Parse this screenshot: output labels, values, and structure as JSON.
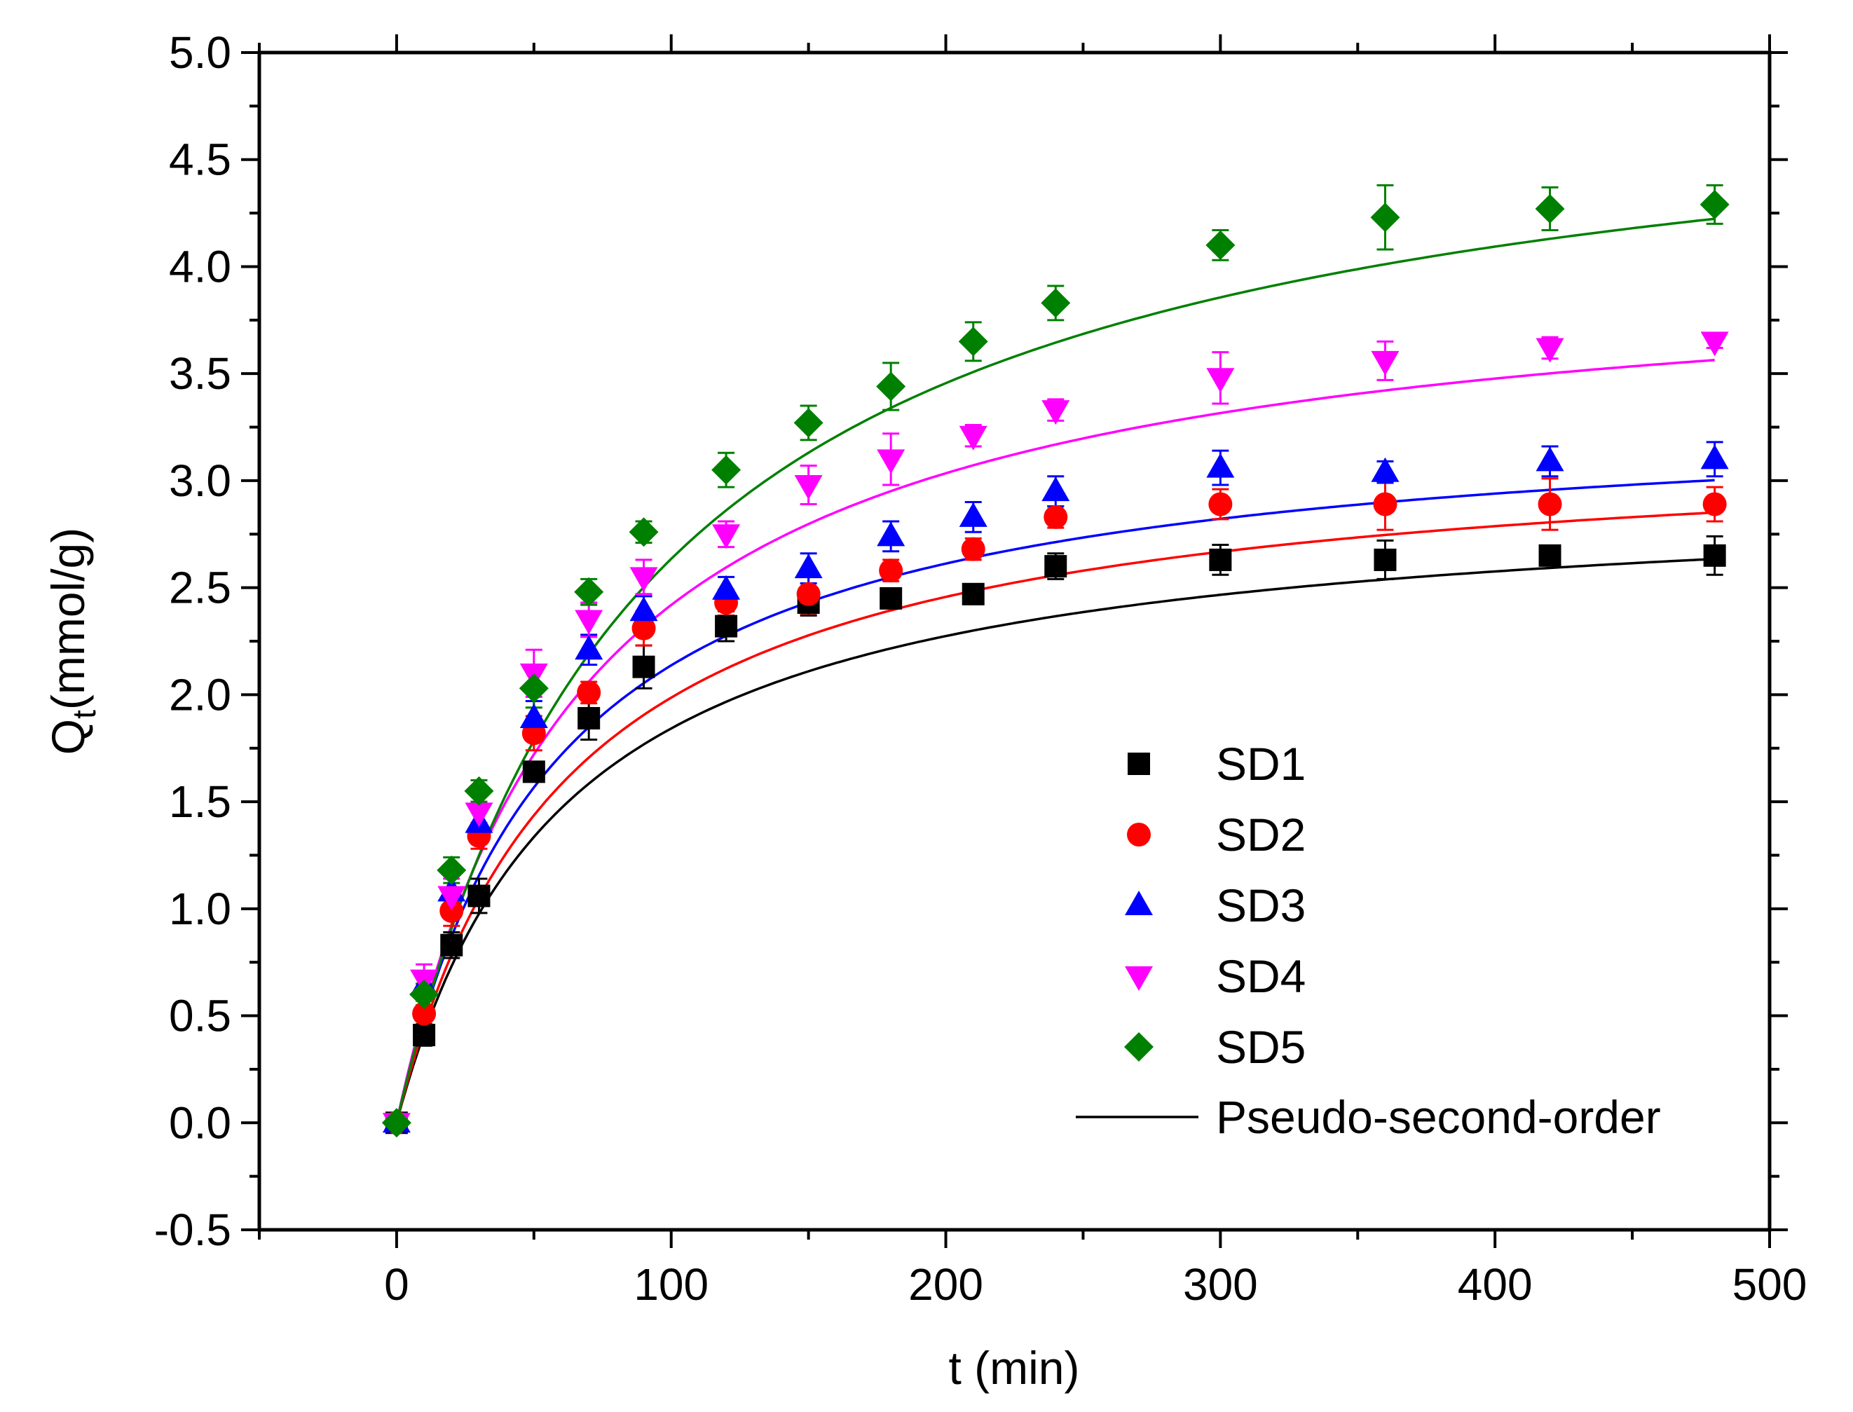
{
  "chart_data": {
    "type": "scatter",
    "title": "",
    "xlabel": "t (min)",
    "ylabel_main": "Q",
    "ylabel_sub": "t",
    "ylabel_unit": "(mmol/g)",
    "xlim": [
      -50,
      500
    ],
    "ylim": [
      -0.5,
      5.0
    ],
    "xticks": [
      0,
      100,
      200,
      300,
      400,
      500
    ],
    "yticks": [
      -0.5,
      0.0,
      0.5,
      1.0,
      1.5,
      2.0,
      2.5,
      3.0,
      3.5,
      4.0,
      4.5,
      5.0
    ],
    "ytick_labels": [
      "-0.5",
      "0.0",
      "0.5",
      "1.0",
      "1.5",
      "2.0",
      "2.5",
      "3.0",
      "3.5",
      "4.0",
      "4.5",
      "5.0"
    ],
    "legend_position": "bottom-right",
    "x": [
      0,
      10,
      20,
      30,
      50,
      70,
      90,
      120,
      150,
      180,
      210,
      240,
      300,
      360,
      420,
      480
    ],
    "series": [
      {
        "name": "SD1",
        "marker": "square",
        "color": "#000000",
        "values": [
          0.0,
          0.41,
          0.83,
          1.06,
          1.64,
          1.89,
          2.13,
          2.32,
          2.43,
          2.45,
          2.47,
          2.6,
          2.63,
          2.63,
          2.65,
          2.65
        ],
        "errors": [
          0.02,
          0.05,
          0.06,
          0.08,
          0.04,
          0.1,
          0.1,
          0.07,
          0.06,
          0.04,
          0.04,
          0.06,
          0.07,
          0.09,
          0.03,
          0.09
        ],
        "fit": {
          "qe": 2.97,
          "k2": 0.0055
        }
      },
      {
        "name": "SD2",
        "marker": "circle",
        "color": "#ff0000",
        "values": [
          0.0,
          0.51,
          0.99,
          1.34,
          1.82,
          2.01,
          2.31,
          2.43,
          2.47,
          2.58,
          2.68,
          2.83,
          2.89,
          2.89,
          2.89,
          2.89
        ],
        "errors": [
          0.02,
          0.06,
          0.07,
          0.06,
          0.08,
          0.05,
          0.08,
          0.06,
          0.09,
          0.05,
          0.05,
          0.05,
          0.07,
          0.12,
          0.12,
          0.08
        ],
        "fit": {
          "qe": 3.22,
          "k2": 0.005
        }
      },
      {
        "name": "SD3",
        "marker": "triangle-up",
        "color": "#0000ff",
        "values": [
          0.0,
          0.64,
          1.08,
          1.4,
          1.89,
          2.21,
          2.39,
          2.49,
          2.59,
          2.74,
          2.83,
          2.95,
          3.06,
          3.04,
          3.09,
          3.1
        ],
        "errors": [
          0.02,
          0.06,
          0.08,
          0.07,
          0.08,
          0.07,
          0.07,
          0.06,
          0.07,
          0.07,
          0.07,
          0.07,
          0.08,
          0.05,
          0.07,
          0.08
        ],
        "fit": {
          "qe": 3.36,
          "k2": 0.0052
        }
      },
      {
        "name": "SD4",
        "marker": "triangle-down",
        "color": "#ff00ff",
        "values": [
          0.0,
          0.67,
          1.06,
          1.45,
          2.1,
          2.35,
          2.55,
          2.75,
          2.98,
          3.1,
          3.21,
          3.33,
          3.48,
          3.56,
          3.62,
          3.65
        ],
        "errors": [
          0.02,
          0.07,
          0.08,
          0.08,
          0.11,
          0.08,
          0.08,
          0.06,
          0.09,
          0.12,
          0.05,
          0.05,
          0.12,
          0.09,
          0.05,
          0.03
        ],
        "fit": {
          "qe": 4.07,
          "k2": 0.0036
        }
      },
      {
        "name": "SD5",
        "marker": "diamond",
        "color": "#008000",
        "values": [
          0.0,
          0.6,
          1.18,
          1.55,
          2.03,
          2.48,
          2.76,
          3.05,
          3.27,
          3.44,
          3.65,
          3.83,
          4.1,
          4.23,
          4.27,
          4.29
        ],
        "errors": [
          0.02,
          0.05,
          0.06,
          0.05,
          0.09,
          0.06,
          0.05,
          0.08,
          0.08,
          0.11,
          0.09,
          0.08,
          0.07,
          0.15,
          0.1,
          0.09
        ],
        "fit": {
          "qe": 5.02,
          "k2": 0.0022
        }
      }
    ],
    "fit_label": "Pseudo-second-order"
  }
}
